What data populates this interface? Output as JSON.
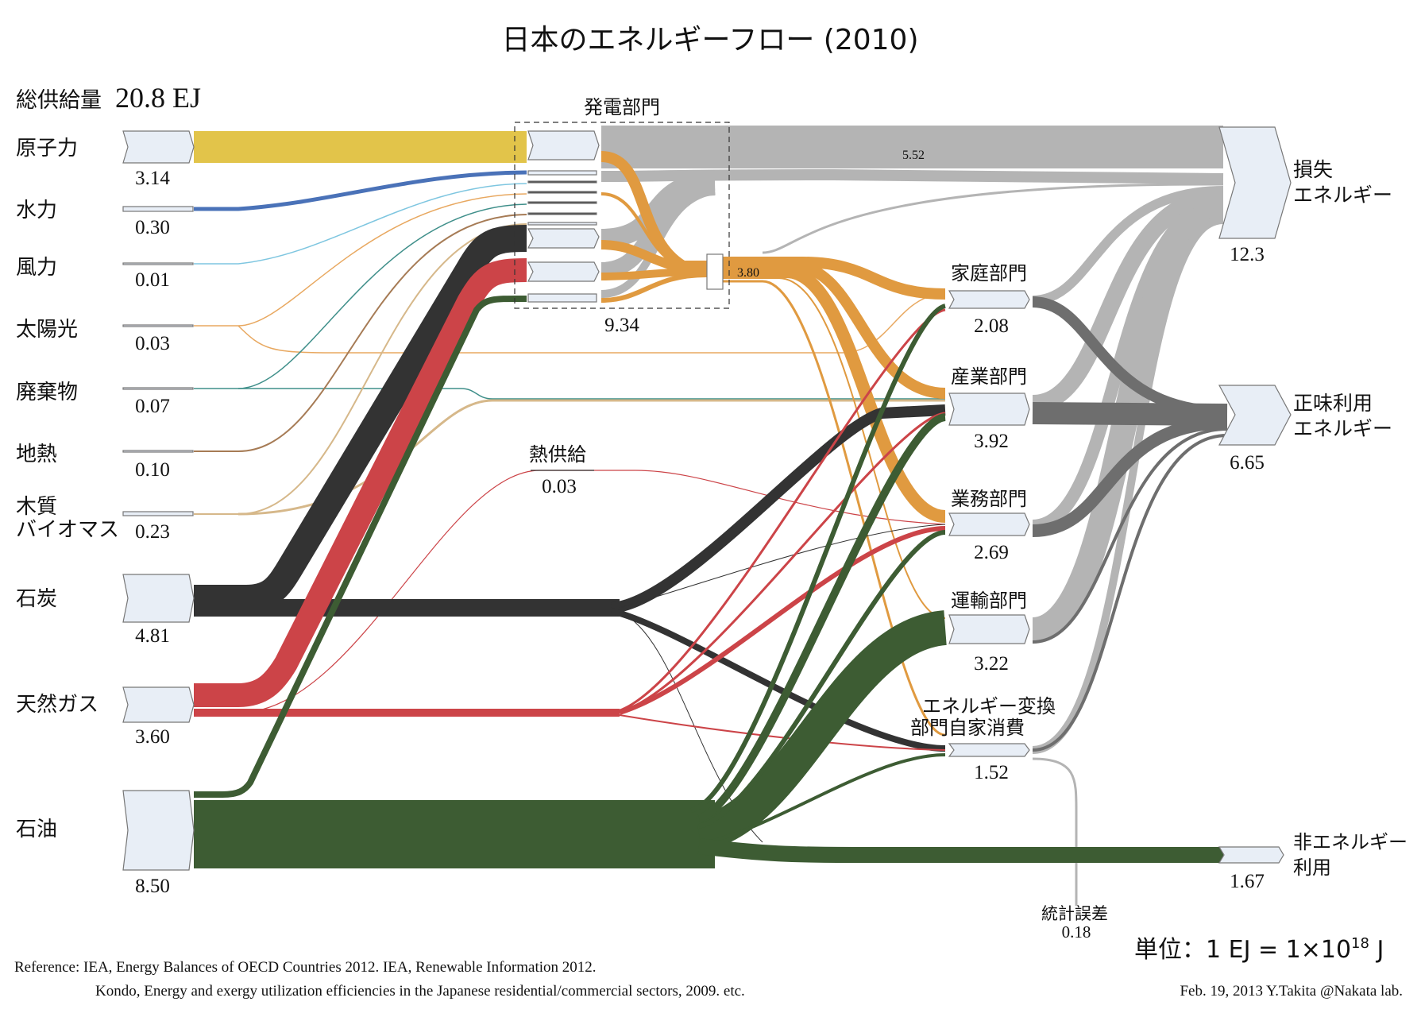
{
  "title": "日本のエネルギーフロー (2010)",
  "total_supply": {
    "label": "総供給量",
    "value": "20.8 EJ"
  },
  "power_group": {
    "label": "発電部門",
    "total": "9.34",
    "input_value": "3.80"
  },
  "loss_flow_value": "5.52",
  "heat_supply": {
    "label": "熱供給",
    "value": "0.03"
  },
  "stat_error": {
    "label": "統計誤差",
    "value": "0.18"
  },
  "unit": {
    "prefix": "単位：",
    "text": "1 EJ = 1×10",
    "exp": "18",
    "suffix": " J"
  },
  "reference": {
    "line1": "Reference: IEA, Energy Balances of OECD Countries 2012. IEA, Renewable Information 2012.",
    "line2": "Kondo, Energy and exergy utilization efficiencies in the Japanese residential/commercial sectors, 2009.   etc."
  },
  "credit": "Feb. 19, 2013   Y.Takita @Nakata lab.",
  "sources": [
    {
      "label": "原子力",
      "value": "3.14",
      "color": "#e2c44a"
    },
    {
      "label": "水力",
      "value": "0.30",
      "color": "#4a72b8"
    },
    {
      "label": "風力",
      "value": "0.01",
      "color": "#7ec6e0"
    },
    {
      "label": "太陽光",
      "value": "0.03",
      "color": "#e8a860"
    },
    {
      "label": "廃棄物",
      "value": "0.07",
      "color": "#3f8f8a"
    },
    {
      "label": "地熱",
      "value": "0.10",
      "color": "#a67b55"
    },
    {
      "label": "木質",
      "label2": "バイオマス",
      "value": "0.23",
      "color": "#d6b88a"
    },
    {
      "label": "石炭",
      "value": "4.81",
      "color": "#333333"
    },
    {
      "label": "天然ガス",
      "value": "3.60",
      "color": "#cc4448"
    },
    {
      "label": "石油",
      "value": "8.50",
      "color": "#3d5c33"
    }
  ],
  "sectors": [
    {
      "label": "家庭部門",
      "value": "2.08"
    },
    {
      "label": "産業部門",
      "value": "3.92"
    },
    {
      "label": "業務部門",
      "value": "2.69"
    },
    {
      "label": "運輸部門",
      "value": "3.22"
    },
    {
      "label": "エネルギー変換",
      "label2": "部門自家消費",
      "value": "1.52"
    }
  ],
  "outputs": [
    {
      "label": "損失",
      "label2": "エネルギー",
      "value": "12.3"
    },
    {
      "label": "正味利用",
      "label2": "エネルギー",
      "value": "6.65"
    },
    {
      "label": "非エネルギー",
      "label2": "利用",
      "value": "1.67"
    }
  ],
  "colors": {
    "electricity": "#e09a40",
    "loss": "#b4b4b4",
    "useful": "#6e6e6e",
    "node_fill": "#e8eef6",
    "node_stroke": "#777777"
  }
}
